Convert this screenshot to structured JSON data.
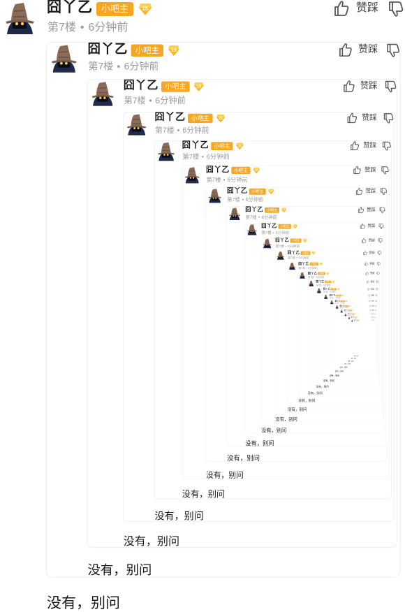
{
  "comment": {
    "username": "囧丫乙",
    "role_badge": "小吧主",
    "level": "15",
    "floor": "第7楼",
    "separator": "•",
    "time": "6分钟前",
    "like_label": "赞踩",
    "reply_text": "没有，别问"
  },
  "nesting": {
    "visible_levels": 22
  },
  "icons": {
    "avatar": "avatar-wizard-icon",
    "level": "level-diamond-icon",
    "like": "thumbs-up-icon",
    "dislike": "thumbs-down-icon"
  },
  "colors": {
    "role_badge_bg": "#f5a623",
    "text": "#1a1a1a",
    "meta": "#9a9a9a",
    "frame_border": "#e9e9e9",
    "icon": "#555555"
  }
}
